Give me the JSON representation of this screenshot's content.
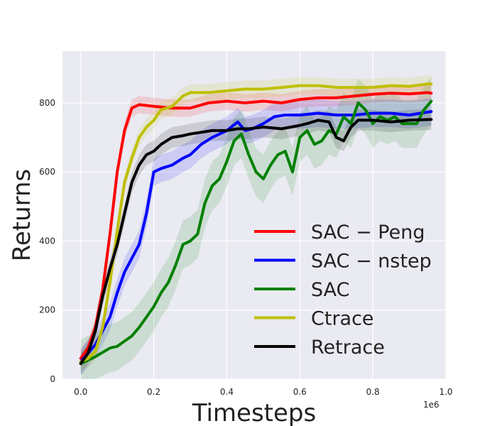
{
  "chart_data": {
    "type": "line",
    "xlabel": "Timesteps",
    "ylabel": "Returns",
    "x_offset_label": "1e6",
    "xlim": [
      -0.05,
      1.0
    ],
    "ylim": [
      0,
      950
    ],
    "xticks": [
      0.0,
      0.2,
      0.4,
      0.6,
      0.8,
      1.0
    ],
    "xtick_labels": [
      "0.0",
      "0.2",
      "0.4",
      "0.6",
      "0.8",
      "1.0"
    ],
    "yticks": [
      0,
      200,
      400,
      600,
      800
    ],
    "ytick_labels": [
      "0",
      "200",
      "400",
      "600",
      "800"
    ],
    "grid": true,
    "legend_position": "lower-right",
    "series": [
      {
        "name": "SAC − Peng",
        "color": "#ff0000",
        "x": [
          0,
          0.02,
          0.04,
          0.06,
          0.08,
          0.1,
          0.12,
          0.14,
          0.16,
          0.2,
          0.25,
          0.3,
          0.35,
          0.4,
          0.45,
          0.5,
          0.55,
          0.6,
          0.65,
          0.7,
          0.75,
          0.8,
          0.85,
          0.9,
          0.95,
          0.96
        ],
        "y": [
          60,
          90,
          150,
          260,
          420,
          600,
          720,
          785,
          795,
          790,
          785,
          785,
          800,
          805,
          800,
          805,
          800,
          810,
          815,
          815,
          820,
          825,
          828,
          826,
          830,
          828
        ],
        "band": 25
      },
      {
        "name": "SAC − nstep",
        "color": "#0000ff",
        "x": [
          0,
          0.04,
          0.08,
          0.1,
          0.12,
          0.14,
          0.16,
          0.18,
          0.2,
          0.22,
          0.25,
          0.28,
          0.3,
          0.33,
          0.36,
          0.4,
          0.43,
          0.45,
          0.47,
          0.5,
          0.53,
          0.56,
          0.6,
          0.65,
          0.7,
          0.75,
          0.8,
          0.85,
          0.9,
          0.96
        ],
        "y": [
          50,
          100,
          180,
          250,
          310,
          350,
          390,
          480,
          600,
          610,
          620,
          640,
          650,
          680,
          700,
          720,
          745,
          720,
          725,
          740,
          760,
          765,
          765,
          770,
          765,
          765,
          770,
          770,
          765,
          775
        ],
        "band": 40
      },
      {
        "name": "SAC",
        "color": "#008000",
        "x": [
          0,
          0.04,
          0.08,
          0.1,
          0.12,
          0.14,
          0.16,
          0.18,
          0.2,
          0.22,
          0.24,
          0.26,
          0.28,
          0.3,
          0.32,
          0.34,
          0.36,
          0.38,
          0.4,
          0.42,
          0.44,
          0.46,
          0.48,
          0.5,
          0.52,
          0.54,
          0.56,
          0.58,
          0.6,
          0.62,
          0.64,
          0.66,
          0.68,
          0.7,
          0.72,
          0.74,
          0.76,
          0.78,
          0.8,
          0.82,
          0.84,
          0.86,
          0.88,
          0.9,
          0.92,
          0.94,
          0.96
        ],
        "y": [
          45,
          65,
          90,
          95,
          110,
          125,
          150,
          180,
          210,
          250,
          280,
          330,
          390,
          400,
          420,
          510,
          560,
          580,
          630,
          690,
          710,
          650,
          600,
          580,
          620,
          650,
          660,
          600,
          700,
          720,
          680,
          690,
          720,
          710,
          760,
          740,
          800,
          780,
          740,
          760,
          750,
          760,
          740,
          740,
          740,
          780,
          805
        ],
        "band": 70
      },
      {
        "name": "Ctrace",
        "color": "#bfbf00",
        "x": [
          0,
          0.02,
          0.04,
          0.06,
          0.08,
          0.1,
          0.12,
          0.14,
          0.16,
          0.18,
          0.2,
          0.22,
          0.25,
          0.28,
          0.3,
          0.35,
          0.4,
          0.45,
          0.5,
          0.55,
          0.6,
          0.65,
          0.7,
          0.75,
          0.8,
          0.85,
          0.9,
          0.95,
          0.96
        ],
        "y": [
          50,
          60,
          80,
          150,
          280,
          430,
          570,
          640,
          700,
          730,
          750,
          780,
          790,
          820,
          830,
          830,
          835,
          840,
          840,
          845,
          850,
          850,
          845,
          845,
          845,
          850,
          848,
          855,
          855
        ],
        "band": 25
      },
      {
        "name": "Retrace",
        "color": "#000000",
        "x": [
          0,
          0.02,
          0.04,
          0.06,
          0.08,
          0.1,
          0.12,
          0.14,
          0.16,
          0.18,
          0.2,
          0.22,
          0.25,
          0.28,
          0.3,
          0.33,
          0.36,
          0.4,
          0.43,
          0.46,
          0.5,
          0.55,
          0.6,
          0.62,
          0.65,
          0.68,
          0.7,
          0.72,
          0.74,
          0.76,
          0.8,
          0.85,
          0.9,
          0.96
        ],
        "y": [
          45,
          75,
          140,
          240,
          320,
          390,
          480,
          570,
          620,
          650,
          660,
          680,
          700,
          705,
          710,
          715,
          720,
          720,
          725,
          725,
          730,
          725,
          735,
          740,
          750,
          745,
          700,
          690,
          730,
          750,
          750,
          745,
          750,
          752
        ],
        "band": 30
      }
    ]
  }
}
